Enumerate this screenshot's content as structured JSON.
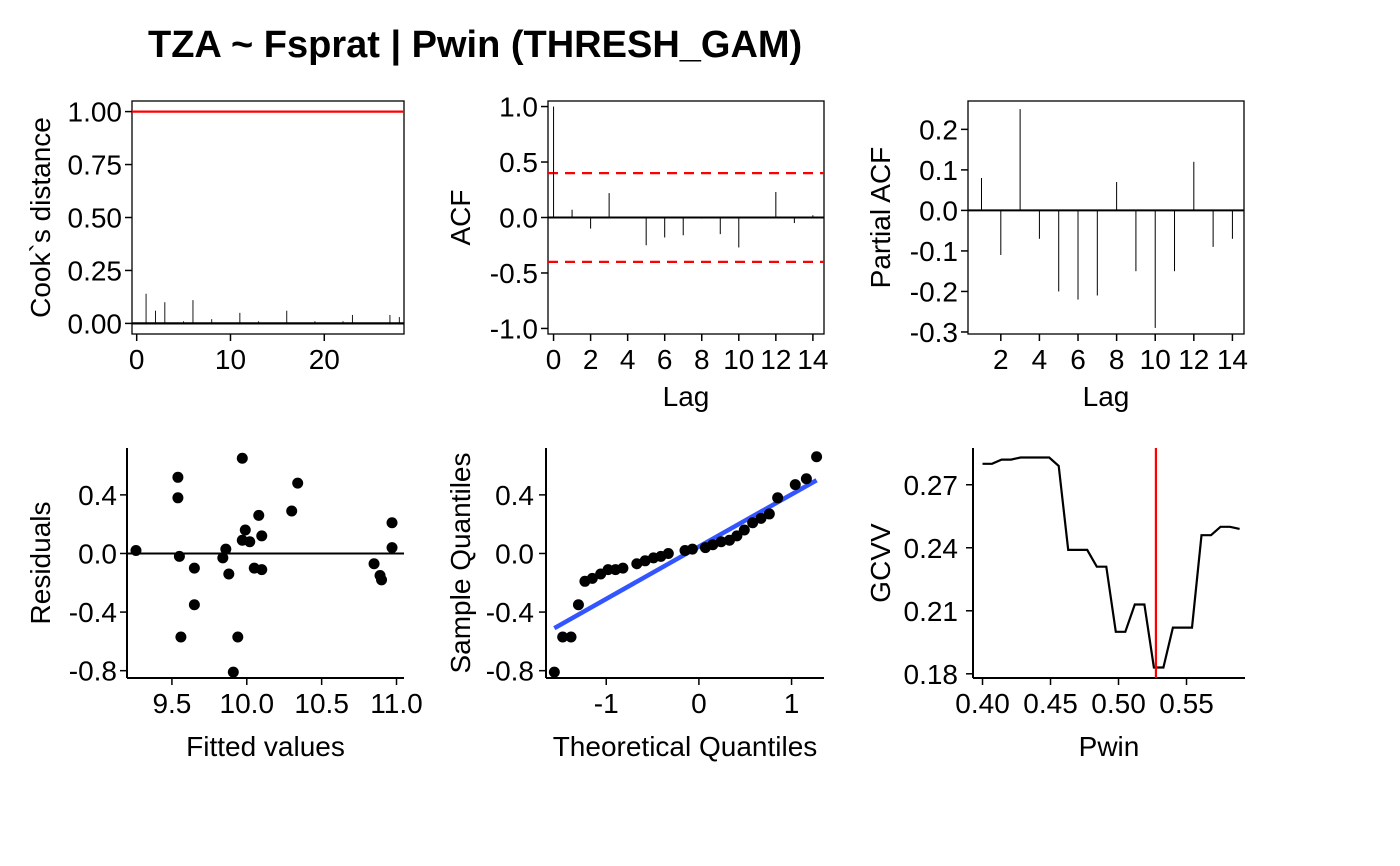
{
  "title": "TZA ~ Fsprat | Pwin (THRESH_GAM)",
  "colors": {
    "axis": "#000000",
    "reference_red": "#ff0000",
    "ci_red": "#ff0000",
    "qq_line": "#3355ff",
    "points": "#000000"
  },
  "chart_data": [
    {
      "id": "cooks",
      "type": "bar",
      "title": "",
      "xlabel": "",
      "ylabel": "Cook`s distance",
      "xlim": [
        -0.5,
        28.5
      ],
      "ylim": [
        -0.05,
        1.05
      ],
      "x_ticks": [
        0,
        10,
        20
      ],
      "x_tick_labels": [
        "0",
        "10",
        "20"
      ],
      "y_ticks": [
        0,
        0.25,
        0.5,
        0.75,
        1
      ],
      "y_tick_labels": [
        "0.00",
        "0.25",
        "0.50",
        "0.75",
        "1.00"
      ],
      "reference_lines": [
        {
          "axis": "y",
          "value": 1.0,
          "color": "red"
        },
        {
          "axis": "y",
          "value": 0.0,
          "color": "black"
        }
      ],
      "x": [
        1,
        2,
        3,
        4,
        5,
        6,
        7,
        8,
        9,
        10,
        11,
        12,
        13,
        14,
        15,
        16,
        17,
        18,
        19,
        20,
        21,
        22,
        23,
        24,
        25,
        26,
        27,
        28
      ],
      "values": [
        0.14,
        0.06,
        0.1,
        0.0,
        0.01,
        0.11,
        0.0,
        0.02,
        0.0,
        0.0,
        0.05,
        0.0,
        0.01,
        0.0,
        0.0,
        0.06,
        0.0,
        0.0,
        0.01,
        0.0,
        0.0,
        0.01,
        0.04,
        0.0,
        0.0,
        0.0,
        0.04,
        0.03
      ]
    },
    {
      "id": "acf",
      "type": "bar",
      "title": "",
      "xlabel": "Lag",
      "ylabel": "ACF",
      "xlim": [
        -0.3,
        14.6
      ],
      "ylim": [
        -1.05,
        1.05
      ],
      "x_ticks": [
        0,
        2,
        4,
        6,
        8,
        10,
        12,
        14
      ],
      "x_tick_labels": [
        "0",
        "2",
        "4",
        "6",
        "8",
        "10",
        "12",
        "14"
      ],
      "y_ticks": [
        -1,
        -0.5,
        0,
        0.5,
        1
      ],
      "y_tick_labels": [
        "-1.0",
        "-0.5",
        "0.0",
        "0.5",
        "1.0"
      ],
      "confidence_bounds": [
        0.4,
        -0.4
      ],
      "x": [
        0,
        1,
        2,
        3,
        4,
        5,
        6,
        7,
        8,
        9,
        10,
        11,
        12,
        13,
        14
      ],
      "values": [
        1.0,
        0.07,
        -0.1,
        0.22,
        0.0,
        -0.25,
        -0.18,
        -0.16,
        -0.01,
        -0.15,
        -0.27,
        0.0,
        0.23,
        -0.05,
        0.02
      ]
    },
    {
      "id": "pacf",
      "type": "bar",
      "title": "",
      "xlabel": "Lag",
      "ylabel": "Partial ACF",
      "xlim": [
        0.3,
        14.6
      ],
      "ylim": [
        -0.305,
        0.27
      ],
      "x_ticks": [
        2,
        4,
        6,
        8,
        10,
        12,
        14
      ],
      "x_tick_labels": [
        "2",
        "4",
        "6",
        "8",
        "10",
        "12",
        "14"
      ],
      "y_ticks": [
        -0.3,
        -0.2,
        -0.1,
        0,
        0.1,
        0.2
      ],
      "y_tick_labels": [
        "-0.3",
        "-0.2",
        "-0.1",
        "0.0",
        "0.1",
        "0.2"
      ],
      "x": [
        1,
        2,
        3,
        4,
        5,
        6,
        7,
        8,
        9,
        10,
        11,
        12,
        13,
        14
      ],
      "values": [
        0.08,
        -0.11,
        0.25,
        -0.07,
        -0.2,
        -0.22,
        -0.21,
        0.07,
        -0.15,
        -0.29,
        -0.15,
        0.12,
        -0.09,
        -0.07
      ]
    },
    {
      "id": "residuals",
      "type": "scatter",
      "title": "",
      "xlabel": "Fitted values",
      "ylabel": "Residuals",
      "xlim": [
        9.2,
        11.05
      ],
      "ylim": [
        -0.85,
        0.72
      ],
      "x_ticks": [
        9.5,
        10.0,
        10.5,
        11.0
      ],
      "x_tick_labels": [
        "9.5",
        "10.0",
        "10.5",
        "11.0"
      ],
      "y_ticks": [
        -0.8,
        -0.4,
        0.0,
        0.4
      ],
      "y_tick_labels": [
        "-0.8",
        "-0.4",
        "0.0",
        "0.4"
      ],
      "reference_lines": [
        {
          "axis": "y",
          "value": 0.0,
          "color": "black"
        }
      ],
      "points": [
        [
          9.26,
          0.02
        ],
        [
          9.54,
          0.52
        ],
        [
          9.54,
          0.38
        ],
        [
          9.55,
          -0.02
        ],
        [
          9.56,
          -0.57
        ],
        [
          9.65,
          -0.1
        ],
        [
          9.65,
          -0.35
        ],
        [
          9.84,
          -0.03
        ],
        [
          9.86,
          0.03
        ],
        [
          9.88,
          -0.14
        ],
        [
          9.91,
          -0.81
        ],
        [
          9.94,
          -0.57
        ],
        [
          9.97,
          0.65
        ],
        [
          9.97,
          0.09
        ],
        [
          9.99,
          0.16
        ],
        [
          10.02,
          0.08
        ],
        [
          10.05,
          -0.1
        ],
        [
          10.08,
          0.26
        ],
        [
          10.1,
          0.12
        ],
        [
          10.1,
          -0.11
        ],
        [
          10.3,
          0.29
        ],
        [
          10.34,
          0.48
        ],
        [
          10.85,
          -0.07
        ],
        [
          10.89,
          -0.15
        ],
        [
          10.9,
          -0.18
        ],
        [
          10.97,
          0.21
        ],
        [
          10.97,
          0.04
        ]
      ]
    },
    {
      "id": "qq",
      "type": "scatter",
      "title": "",
      "xlabel": "Theoretical Quantiles",
      "ylabel": "Sample Quantiles",
      "xlim": [
        -1.65,
        1.35
      ],
      "ylim": [
        -0.85,
        0.72
      ],
      "x_ticks": [
        -1,
        0,
        1
      ],
      "x_tick_labels": [
        "-1",
        "0",
        "1"
      ],
      "y_ticks": [
        -0.8,
        -0.4,
        0.0,
        0.4
      ],
      "y_tick_labels": [
        "-0.8",
        "-0.4",
        "0.0",
        "0.4"
      ],
      "qq_line": [
        [
          -1.56,
          -0.51
        ],
        [
          1.27,
          0.5
        ]
      ],
      "points": [
        [
          -1.56,
          -0.81
        ],
        [
          -1.47,
          -0.57
        ],
        [
          -1.38,
          -0.57
        ],
        [
          -1.3,
          -0.35
        ],
        [
          -1.23,
          -0.19
        ],
        [
          -1.15,
          -0.17
        ],
        [
          -1.06,
          -0.14
        ],
        [
          -0.98,
          -0.11
        ],
        [
          -0.9,
          -0.11
        ],
        [
          -0.82,
          -0.1
        ],
        [
          -0.67,
          -0.07
        ],
        [
          -0.58,
          -0.05
        ],
        [
          -0.49,
          -0.03
        ],
        [
          -0.41,
          -0.02
        ],
        [
          -0.33,
          0.0
        ],
        [
          -0.15,
          0.02
        ],
        [
          -0.07,
          0.03
        ],
        [
          0.07,
          0.04
        ],
        [
          0.15,
          0.06
        ],
        [
          0.24,
          0.08
        ],
        [
          0.33,
          0.09
        ],
        [
          0.41,
          0.12
        ],
        [
          0.49,
          0.16
        ],
        [
          0.58,
          0.21
        ],
        [
          0.67,
          0.24
        ],
        [
          0.76,
          0.27
        ],
        [
          0.85,
          0.38
        ],
        [
          1.04,
          0.47
        ],
        [
          1.16,
          0.51
        ],
        [
          1.27,
          0.66
        ]
      ]
    },
    {
      "id": "gcvv",
      "type": "line",
      "title": "",
      "xlabel": "Pwin",
      "ylabel": "GCVV",
      "xlim": [
        0.393,
        0.593
      ],
      "ylim": [
        0.178,
        0.2875
      ],
      "x_ticks": [
        0.4,
        0.45,
        0.5,
        0.55
      ],
      "x_tick_labels": [
        "0.40",
        "0.45",
        "0.50",
        "0.55"
      ],
      "y_ticks": [
        0.18,
        0.21,
        0.24,
        0.27
      ],
      "y_tick_labels": [
        "0.18",
        "0.21",
        "0.24",
        "0.27"
      ],
      "threshold": 0.5275,
      "x": [
        0.4,
        0.407,
        0.414,
        0.421,
        0.428,
        0.435,
        0.442,
        0.449,
        0.456,
        0.463,
        0.47,
        0.477,
        0.484,
        0.491,
        0.498,
        0.505,
        0.512,
        0.519,
        0.526,
        0.533,
        0.54,
        0.547,
        0.554,
        0.561,
        0.568,
        0.575,
        0.582,
        0.589
      ],
      "values": [
        0.28,
        0.28,
        0.282,
        0.282,
        0.283,
        0.283,
        0.283,
        0.283,
        0.279,
        0.239,
        0.239,
        0.239,
        0.231,
        0.231,
        0.2,
        0.2,
        0.213,
        0.213,
        0.183,
        0.183,
        0.202,
        0.202,
        0.202,
        0.246,
        0.246,
        0.25,
        0.25,
        0.249
      ]
    }
  ]
}
